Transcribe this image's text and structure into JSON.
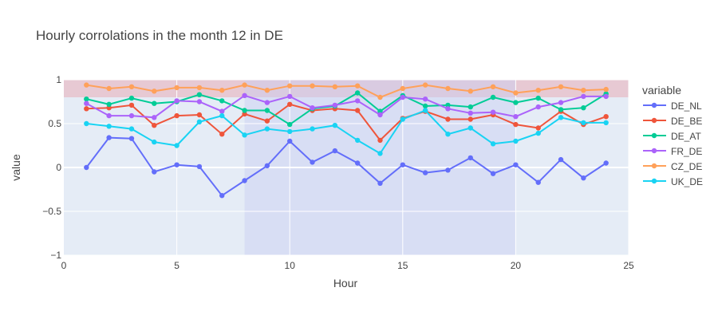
{
  "chart_data": {
    "type": "line",
    "title": "Hourly corrolations in the month 12 in DE",
    "xlabel": "Hour",
    "ylabel": "value",
    "xlim": [
      0,
      25
    ],
    "ylim": [
      -1,
      1
    ],
    "xticks": [
      0,
      5,
      10,
      15,
      20,
      25
    ],
    "yticks": [
      -1,
      -0.5,
      0,
      0.5,
      1
    ],
    "ytick_labels": [
      "−1",
      "−0.5",
      "0",
      "0.5",
      "1"
    ],
    "legend_title": "variable",
    "legend_position": "right",
    "grid": true,
    "plot_bgcolor": "#E5ECF6",
    "shaded_regions": [
      {
        "axis": "y",
        "from": 0.8,
        "to": 1,
        "color": "#E8A0A8"
      },
      {
        "axis": "x",
        "from": 8,
        "to": 20,
        "color": "#C8CEF2"
      }
    ],
    "x": [
      1,
      2,
      3,
      4,
      5,
      6,
      7,
      8,
      9,
      10,
      11,
      12,
      13,
      14,
      15,
      16,
      17,
      18,
      19,
      20,
      21,
      22,
      23,
      24
    ],
    "series": [
      {
        "name": "DE_NL",
        "color": "#636EFA",
        "values": [
          0.0,
          0.34,
          0.33,
          -0.05,
          0.03,
          0.01,
          -0.32,
          -0.15,
          0.02,
          0.3,
          0.06,
          0.19,
          0.05,
          -0.18,
          0.03,
          -0.06,
          -0.03,
          0.11,
          -0.07,
          0.03,
          -0.17,
          0.09,
          -0.12,
          0.05
        ]
      },
      {
        "name": "DE_BE",
        "color": "#EF553B",
        "values": [
          0.67,
          0.68,
          0.71,
          0.48,
          0.59,
          0.6,
          0.38,
          0.61,
          0.53,
          0.72,
          0.65,
          0.67,
          0.65,
          0.31,
          0.56,
          0.64,
          0.55,
          0.55,
          0.6,
          0.49,
          0.45,
          0.64,
          0.49,
          0.58
        ]
      },
      {
        "name": "DE_AT",
        "color": "#00CC96",
        "values": [
          0.78,
          0.72,
          0.79,
          0.73,
          0.75,
          0.83,
          0.76,
          0.65,
          0.65,
          0.49,
          0.67,
          0.7,
          0.85,
          0.64,
          0.82,
          0.7,
          0.71,
          0.69,
          0.8,
          0.74,
          0.79,
          0.66,
          0.68,
          0.84
        ]
      },
      {
        "name": "FR_DE",
        "color": "#AB63FA",
        "values": [
          0.73,
          0.59,
          0.59,
          0.57,
          0.76,
          0.75,
          0.64,
          0.82,
          0.74,
          0.81,
          0.68,
          0.71,
          0.76,
          0.6,
          0.8,
          0.78,
          0.67,
          0.62,
          0.63,
          0.58,
          0.69,
          0.74,
          0.81,
          0.81
        ]
      },
      {
        "name": "CZ_DE",
        "color": "#FFA15A",
        "values": [
          0.94,
          0.9,
          0.92,
          0.87,
          0.91,
          0.91,
          0.88,
          0.94,
          0.88,
          0.93,
          0.93,
          0.92,
          0.93,
          0.8,
          0.9,
          0.94,
          0.9,
          0.87,
          0.92,
          0.85,
          0.88,
          0.92,
          0.88,
          0.89
        ]
      },
      {
        "name": "UK_DE",
        "color": "#19D3F3",
        "values": [
          0.5,
          0.47,
          0.44,
          0.29,
          0.25,
          0.52,
          0.59,
          0.37,
          0.44,
          0.41,
          0.44,
          0.48,
          0.31,
          0.16,
          0.55,
          0.65,
          0.38,
          0.45,
          0.27,
          0.3,
          0.39,
          0.57,
          0.51,
          0.51
        ]
      }
    ]
  }
}
